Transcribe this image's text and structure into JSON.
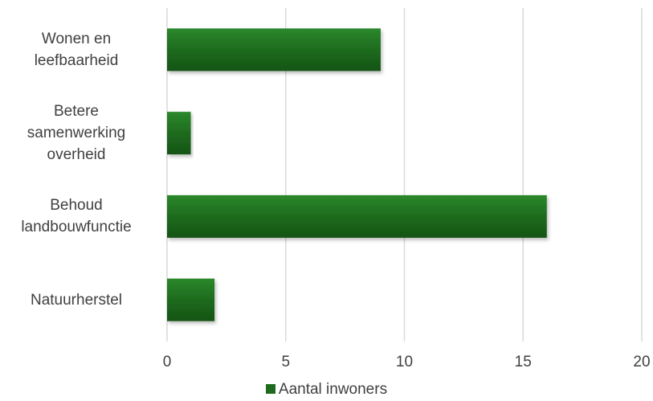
{
  "chart_data": {
    "type": "bar",
    "orientation": "horizontal",
    "categories": [
      "Wonen en\nleefbaarheid",
      "Betere\nsamenwerking\noverheid",
      "Behoud\nlandbouwfunctie",
      "Natuurherstel"
    ],
    "series": [
      {
        "name": "Aantal inwoners",
        "values": [
          9,
          1,
          16,
          2
        ]
      }
    ],
    "xlim": [
      0,
      20
    ],
    "xticks": [
      "0",
      "5",
      "10",
      "15",
      "20"
    ],
    "grid": true,
    "legend_position": "bottom",
    "bar_color": "#1e6b1e",
    "bar_color_light": "#2b882b",
    "bar_color_dark": "#155415"
  }
}
